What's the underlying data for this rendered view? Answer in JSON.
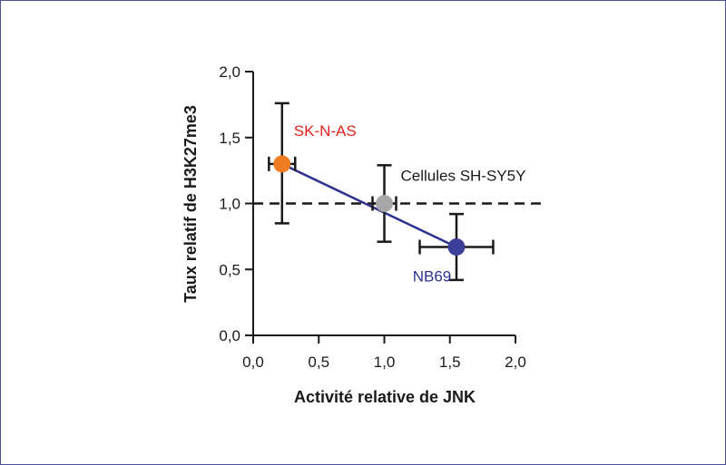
{
  "chart_data": {
    "type": "scatter",
    "xlabel": "Activité relative de JNK",
    "ylabel": "Taux relatif de H3K27me3",
    "xlim": [
      0,
      2
    ],
    "ylim": [
      0,
      2
    ],
    "x_ticks": [
      0,
      0.5,
      1,
      1.5,
      2
    ],
    "y_ticks": [
      0,
      0.5,
      1,
      1.5,
      2
    ],
    "x_tick_labels": [
      "0,0",
      "0,5",
      "1,0",
      "1,5",
      "2,0"
    ],
    "y_tick_labels": [
      "0,0",
      "0,5",
      "1,0",
      "1,5",
      "2,0"
    ],
    "reference_line": {
      "y": 1.0,
      "style": "dashed"
    },
    "trend_line": {
      "color": "#2e3192",
      "points": [
        "SK-N-AS",
        "NB69"
      ]
    },
    "points": [
      {
        "label": "SK-N-AS",
        "x": 0.22,
        "y": 1.3,
        "x_err": 0.1,
        "y_err_low": 0.45,
        "y_err_high": 0.46,
        "color": "#f07c22",
        "label_color": "#e2231a"
      },
      {
        "label": "Cellules SH-SY5Y",
        "x": 1.0,
        "y": 1.0,
        "x_err": 0.09,
        "y_err_low": 0.29,
        "y_err_high": 0.29,
        "color": "#a6a6a6",
        "label_color": "#1a1a1a"
      },
      {
        "label": "NB69",
        "x": 1.55,
        "y": 0.67,
        "x_err": 0.28,
        "y_err_low": 0.25,
        "y_err_high": 0.25,
        "color": "#3b3f98",
        "label_color": "#2e3192"
      }
    ]
  }
}
